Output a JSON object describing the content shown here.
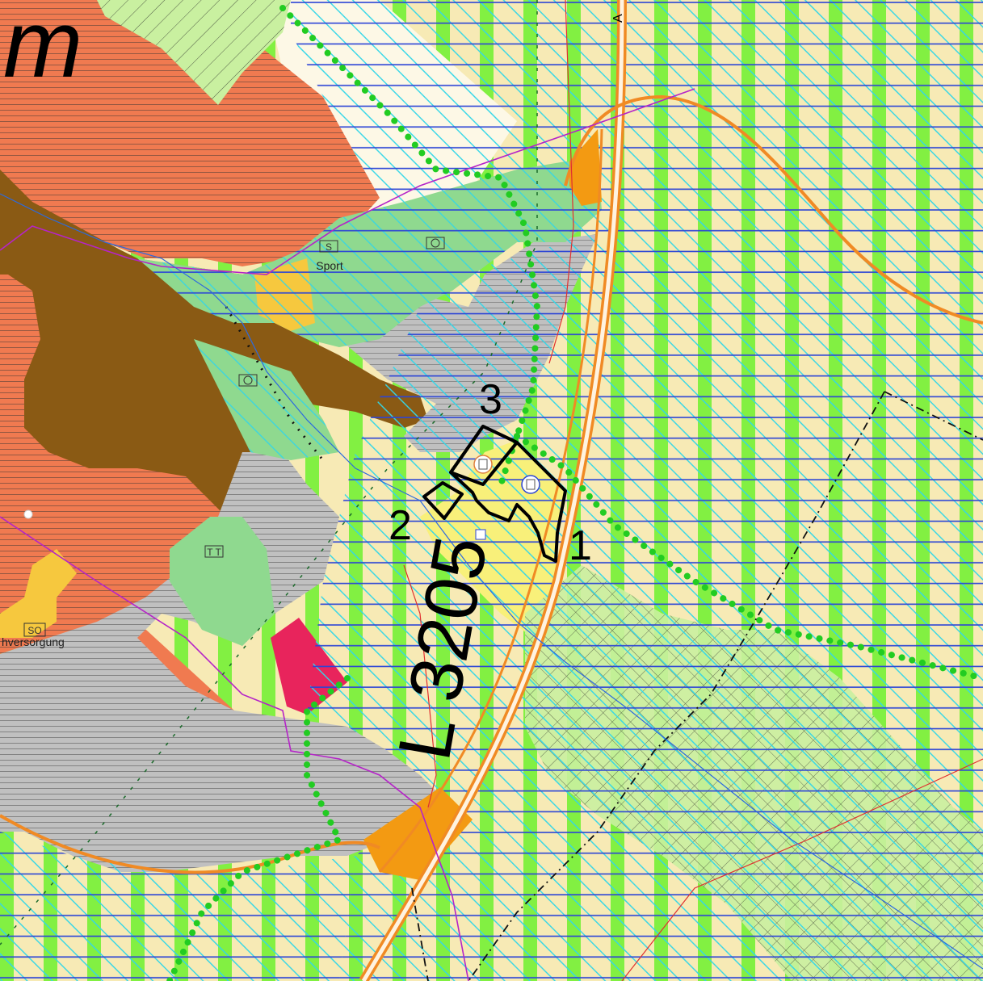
{
  "map": {
    "corner_text": "m",
    "road_label": "L 3205",
    "road_marker": "A",
    "site_numbers": [
      "1",
      "2",
      "3"
    ],
    "place_labels": {
      "sport": "Sport",
      "sport_symbol": "S",
      "versorgung": "hversorgung",
      "so_symbol": "SO",
      "t_symbol": "T T"
    },
    "colors": {
      "background": "#f7eab5",
      "commercial": "#f07a50",
      "forest_brown": "#8a5a14",
      "grey_area": "#c0c0c0",
      "green_area": "#8fd98f",
      "lightgreen_stripe": "#7cf03c",
      "cyan_hatch": "#33d6e8",
      "blue_lines": "#2b44d6",
      "project_yellow": "#f8f07a",
      "orange_road": "#f39a12",
      "red_area": "#e8245c",
      "yellow_area": "#f6c83e",
      "green_dots": "#22cc22",
      "road_orange": "#f08a24"
    }
  }
}
